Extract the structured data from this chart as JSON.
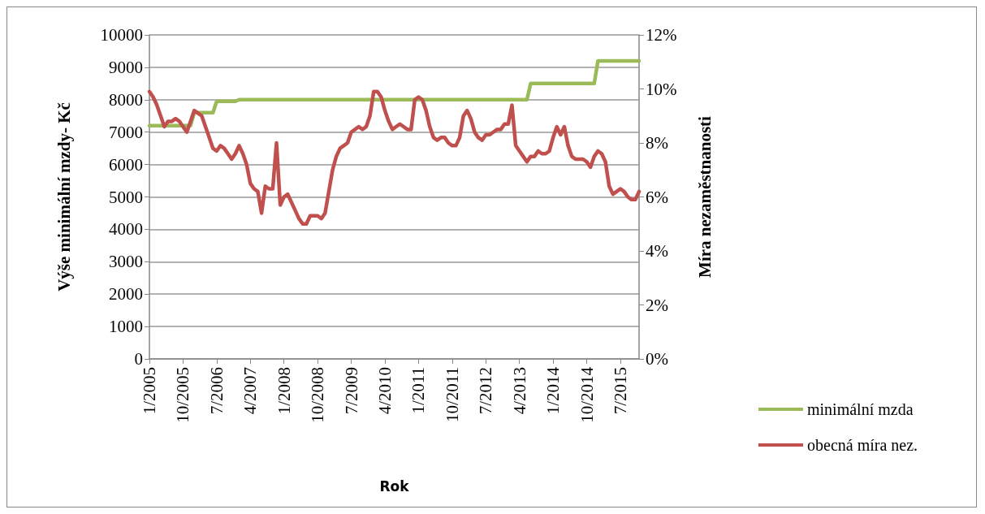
{
  "chart_data": {
    "type": "line",
    "xlabel": "Rok",
    "ylabel": "Výše minimální mzdy- Kč",
    "y2label": "Míra nezaměstnanosti",
    "categories": [
      "1/2005",
      null,
      null,
      null,
      null,
      null,
      null,
      null,
      null,
      "10/2005",
      null,
      null,
      null,
      null,
      null,
      null,
      null,
      null,
      "7/2006",
      null,
      null,
      null,
      null,
      null,
      null,
      null,
      null,
      "4/2007",
      null,
      null,
      null,
      null,
      null,
      null,
      null,
      null,
      "1/2008",
      null,
      null,
      null,
      null,
      null,
      null,
      null,
      null,
      "10/2008",
      null,
      null,
      null,
      null,
      null,
      null,
      null,
      null,
      "7/2009",
      null,
      null,
      null,
      null,
      null,
      null,
      null,
      null,
      "4/2010",
      null,
      null,
      null,
      null,
      null,
      null,
      null,
      null,
      "1/2011",
      null,
      null,
      null,
      null,
      null,
      null,
      null,
      null,
      "10/2011",
      null,
      null,
      null,
      null,
      null,
      null,
      null,
      null,
      "7/2012",
      null,
      null,
      null,
      null,
      null,
      null,
      null,
      null,
      "4/2013",
      null,
      null,
      null,
      null,
      null,
      null,
      null,
      null,
      "1/2014",
      null,
      null,
      null,
      null,
      null,
      null,
      null,
      null,
      "10/2014",
      null,
      null,
      null,
      null,
      null,
      null,
      null,
      null,
      "7/2015",
      null,
      null,
      null,
      null,
      null
    ],
    "series": [
      {
        "name": "minimální mzda",
        "color": "#9bbb59",
        "values": [
          7200,
          7200,
          7200,
          7200,
          7200,
          7200,
          7200,
          7200,
          7200,
          7200,
          7200,
          7200,
          7600,
          7600,
          7600,
          7600,
          7600,
          7600,
          7950,
          7950,
          7950,
          7950,
          7950,
          7950,
          8000,
          8000,
          8000,
          8000,
          8000,
          8000,
          8000,
          8000,
          8000,
          8000,
          8000,
          8000,
          8000,
          8000,
          8000,
          8000,
          8000,
          8000,
          8000,
          8000,
          8000,
          8000,
          8000,
          8000,
          8000,
          8000,
          8000,
          8000,
          8000,
          8000,
          8000,
          8000,
          8000,
          8000,
          8000,
          8000,
          8000,
          8000,
          8000,
          8000,
          8000,
          8000,
          8000,
          8000,
          8000,
          8000,
          8000,
          8000,
          8000,
          8000,
          8000,
          8000,
          8000,
          8000,
          8000,
          8000,
          8000,
          8000,
          8000,
          8000,
          8000,
          8000,
          8000,
          8000,
          8000,
          8000,
          8000,
          8000,
          8000,
          8000,
          8000,
          8000,
          8000,
          8000,
          8000,
          8000,
          8000,
          8000,
          8500,
          8500,
          8500,
          8500,
          8500,
          8500,
          8500,
          8500,
          8500,
          8500,
          8500,
          8500,
          8500,
          8500,
          8500,
          8500,
          8500,
          8500,
          9200,
          9200,
          9200,
          9200,
          9200,
          9200,
          9200,
          9200,
          9200,
          9200,
          9200,
          9200
        ]
      },
      {
        "name": "obecná míra nez.",
        "color": "#c0504d",
        "axis": "y2",
        "values": [
          9.9,
          9.7,
          9.4,
          9.0,
          8.6,
          8.8,
          8.8,
          8.9,
          8.8,
          8.6,
          8.4,
          8.8,
          9.2,
          9.1,
          9.0,
          8.6,
          8.2,
          7.8,
          7.7,
          7.9,
          7.8,
          7.6,
          7.4,
          7.6,
          7.9,
          7.6,
          7.2,
          6.5,
          6.3,
          6.2,
          5.4,
          6.4,
          6.3,
          6.3,
          8.0,
          5.7,
          6.0,
          6.1,
          5.8,
          5.5,
          5.2,
          5.0,
          5.0,
          5.3,
          5.3,
          5.3,
          5.2,
          5.4,
          6.2,
          7.0,
          7.5,
          7.8,
          7.9,
          8.0,
          8.4,
          8.5,
          8.6,
          8.5,
          8.6,
          9.0,
          9.9,
          9.9,
          9.7,
          9.2,
          8.8,
          8.5,
          8.6,
          8.7,
          8.6,
          8.5,
          8.5,
          9.6,
          9.7,
          9.6,
          9.2,
          8.6,
          8.2,
          8.1,
          8.2,
          8.2,
          8.0,
          7.9,
          7.9,
          8.2,
          9.0,
          9.2,
          8.9,
          8.4,
          8.2,
          8.1,
          8.3,
          8.3,
          8.4,
          8.5,
          8.5,
          8.7,
          8.7,
          9.4,
          7.9,
          7.7,
          7.5,
          7.3,
          7.5,
          7.5,
          7.7,
          7.6,
          7.6,
          7.7,
          8.2,
          8.6,
          8.3,
          8.6,
          7.9,
          7.5,
          7.4,
          7.4,
          7.4,
          7.3,
          7.1,
          7.5,
          7.7,
          7.6,
          7.3,
          6.4,
          6.1,
          6.2,
          6.3,
          6.2,
          6.0,
          5.9,
          5.9,
          6.2
        ]
      }
    ],
    "ylim": [
      0,
      10000
    ],
    "yticks": [
      0,
      1000,
      2000,
      3000,
      4000,
      5000,
      6000,
      7000,
      8000,
      9000,
      10000
    ],
    "y2lim": [
      0,
      12
    ],
    "y2ticks": [
      {
        "value": 0,
        "label": "0%"
      },
      {
        "value": 2,
        "label": "2%"
      },
      {
        "value": 4,
        "label": "4%"
      },
      {
        "value": 6,
        "label": "6%"
      },
      {
        "value": 8,
        "label": "8%"
      },
      {
        "value": 10,
        "label": "10%"
      },
      {
        "value": 12,
        "label": "12%"
      }
    ],
    "grid": "y",
    "legend": "right",
    "marker": "none",
    "line_style": "solid"
  }
}
